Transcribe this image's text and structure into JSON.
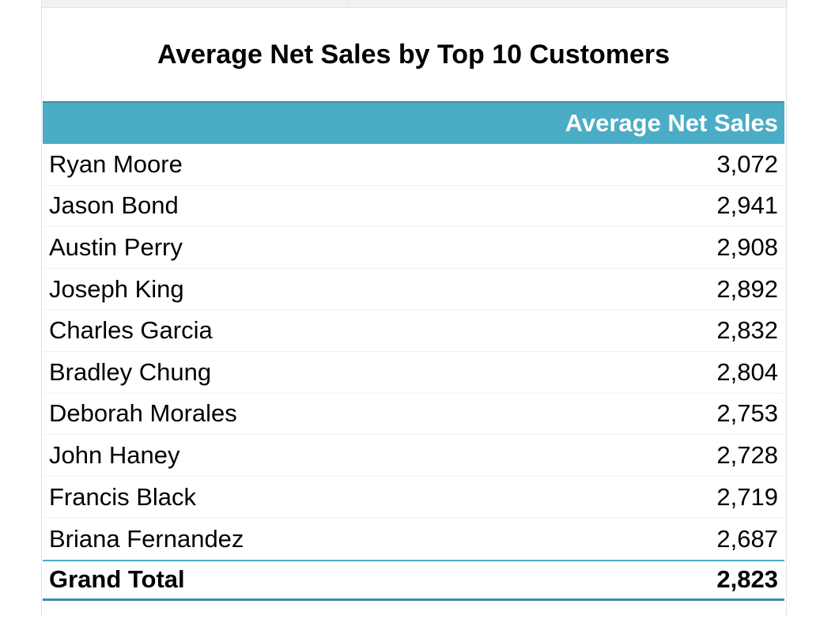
{
  "title": "Average Net Sales by Top 10 Customers",
  "colors": {
    "header_fill": "#4bacc6",
    "header_text": "#ffffff",
    "accent_border": "#3b8ea5"
  },
  "pivot": {
    "value_header": "Average Net Sales",
    "rows": [
      {
        "name": "Ryan Moore",
        "value": "3,072"
      },
      {
        "name": "Jason Bond",
        "value": "2,941"
      },
      {
        "name": "Austin Perry",
        "value": "2,908"
      },
      {
        "name": "Joseph King",
        "value": "2,892"
      },
      {
        "name": "Charles Garcia",
        "value": "2,832"
      },
      {
        "name": "Bradley Chung",
        "value": "2,804"
      },
      {
        "name": "Deborah Morales",
        "value": "2,753"
      },
      {
        "name": "John Haney",
        "value": "2,728"
      },
      {
        "name": "Francis Black",
        "value": "2,719"
      },
      {
        "name": "Briana Fernandez",
        "value": "2,687"
      }
    ],
    "total_label": "Grand Total",
    "total_value": "2,823"
  }
}
